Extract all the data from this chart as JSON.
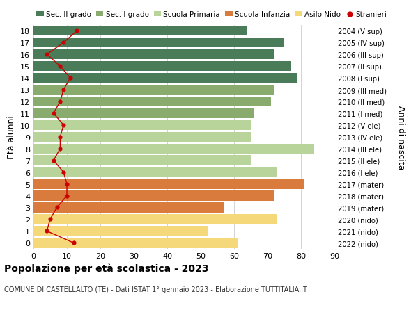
{
  "ages": [
    0,
    1,
    2,
    3,
    4,
    5,
    6,
    7,
    8,
    9,
    10,
    11,
    12,
    13,
    14,
    15,
    16,
    17,
    18
  ],
  "bar_values": [
    61,
    52,
    73,
    57,
    72,
    81,
    73,
    65,
    84,
    65,
    65,
    66,
    71,
    72,
    79,
    77,
    72,
    75,
    64
  ],
  "bar_colors": [
    "#f5d87a",
    "#f5d87a",
    "#f5d87a",
    "#d97b3c",
    "#d97b3c",
    "#d97b3c",
    "#b8d49a",
    "#b8d49a",
    "#b8d49a",
    "#b8d49a",
    "#b8d49a",
    "#8aab6e",
    "#8aab6e",
    "#8aab6e",
    "#4a7c59",
    "#4a7c59",
    "#4a7c59",
    "#4a7c59",
    "#4a7c59"
  ],
  "stranieri_values": [
    12,
    4,
    5,
    7,
    10,
    10,
    9,
    6,
    8,
    8,
    9,
    6,
    8,
    9,
    11,
    8,
    4,
    9,
    13
  ],
  "right_labels": [
    "2022 (nido)",
    "2021 (nido)",
    "2020 (nido)",
    "2019 (mater)",
    "2018 (mater)",
    "2017 (mater)",
    "2016 (I ele)",
    "2015 (II ele)",
    "2014 (III ele)",
    "2013 (IV ele)",
    "2012 (V ele)",
    "2011 (I med)",
    "2010 (II med)",
    "2009 (III med)",
    "2008 (I sup)",
    "2007 (II sup)",
    "2006 (III sup)",
    "2005 (IV sup)",
    "2004 (V sup)"
  ],
  "legend_labels": [
    "Sec. II grado",
    "Sec. I grado",
    "Scuola Primaria",
    "Scuola Infanzia",
    "Asilo Nido",
    "Stranieri"
  ],
  "legend_colors": [
    "#4a7c59",
    "#8aab6e",
    "#b8d49a",
    "#d97b3c",
    "#f5d87a",
    "#cc0000"
  ],
  "ylabel_left": "Età alunni",
  "ylabel_right": "Anni di nascita",
  "xlim": [
    0,
    90
  ],
  "xticks": [
    0,
    10,
    20,
    30,
    40,
    50,
    60,
    70,
    80,
    90
  ],
  "title": "Popolazione per età scolastica - 2023",
  "subtitle": "COMUNE DI CASTELLALTO (TE) - Dati ISTAT 1° gennaio 2023 - Elaborazione TUTTITALIA.IT",
  "bg_color": "#ffffff",
  "grid_color": "#cccccc"
}
